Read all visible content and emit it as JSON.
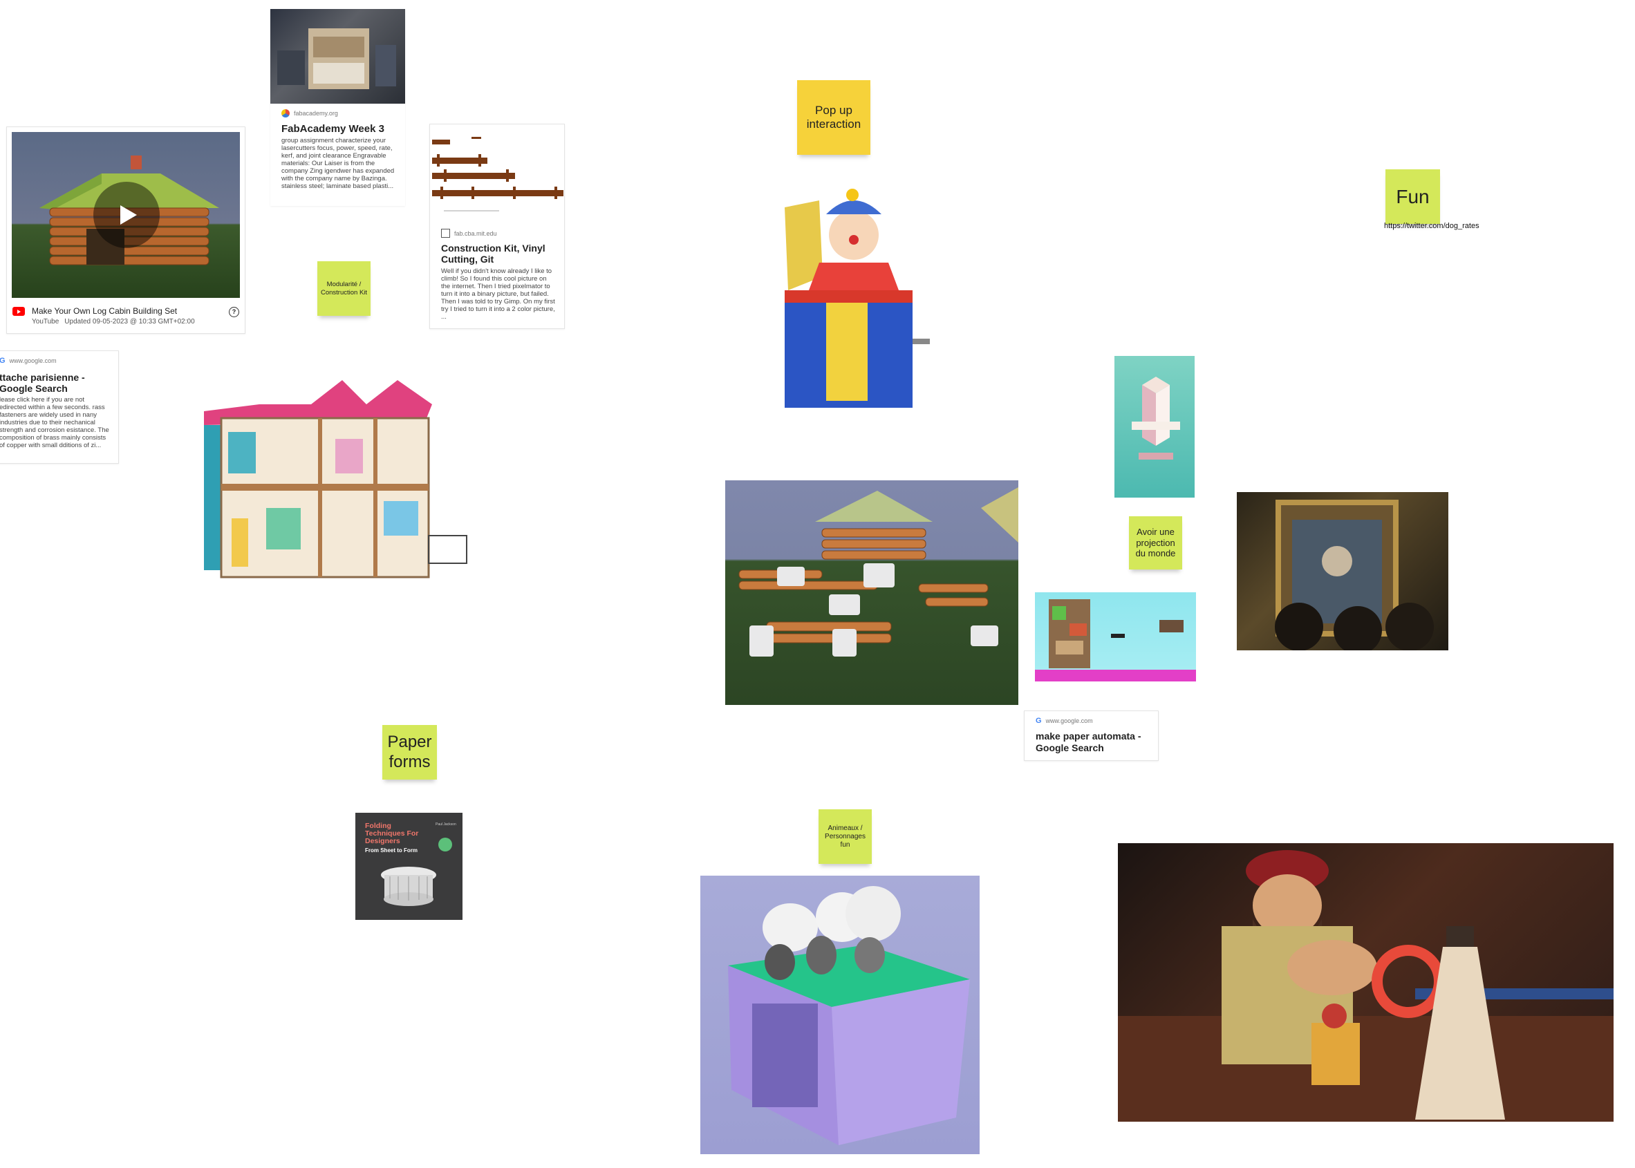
{
  "youtube_card": {
    "title": "Make Your Own Log Cabin Building Set",
    "source": "YouTube",
    "updated": "Updated 09-05-2023 @ 10:33 GMT+02:00",
    "help": "?"
  },
  "fabacademy_card": {
    "domain": "fabacademy.org",
    "title": "FabAcademy Week 3",
    "body": "group assignment characterize your lasercutters focus, power, speed, rate, kerf, and joint clearance Engravable materials: Our Laiser is from the company Zing igendwer has expanded with the company name by Bazinga. stainless steel; laminate based plasti..."
  },
  "construction_card": {
    "domain": "fab.cba.mit.edu",
    "title": "Construction Kit, Vinyl Cutting, Git",
    "body": "Well if you didn't know already I like to climb! So I found this cool picture on the internet. Then I tried pixelmator to turn it into a binary picture, but failed. Then I was told to try Gimp. On my first try I tried to turn it into a 2 color picture, ..."
  },
  "attache_card": {
    "domain": "www.google.com",
    "title": "ttache parisienne - Google Search",
    "body": "lease click here if you are not edirected within a few seconds. rass fasteners are widely used in nany industries due to their nechanical strength and corrosion esistance. The composition of brass mainly consists of copper with small dditions of zi..."
  },
  "automata_card": {
    "domain": "www.google.com",
    "title": "make paper automata - Google Search"
  },
  "book": {
    "title": "Folding Techniques For Designers",
    "subtitle": "From Sheet to Form",
    "author": "Paul Jackson"
  },
  "stickies": {
    "modularite": "Modularité / Construction Kit",
    "popup": "Pop up interaction",
    "fun": "Fun",
    "fun_link": "https://twitter.com/dog_rates",
    "projection": "Avoir une projection du monde",
    "paper_forms": "Paper forms",
    "animaux": "Animeaux / Personnages fun"
  },
  "colors": {
    "sticky_green": "#d4e85a",
    "sticky_yellow": "#f6d23a",
    "youtube_red": "#ff0000"
  },
  "icons": [
    "play-icon",
    "youtube-icon",
    "help-icon",
    "google-icon",
    "site-favicon"
  ]
}
